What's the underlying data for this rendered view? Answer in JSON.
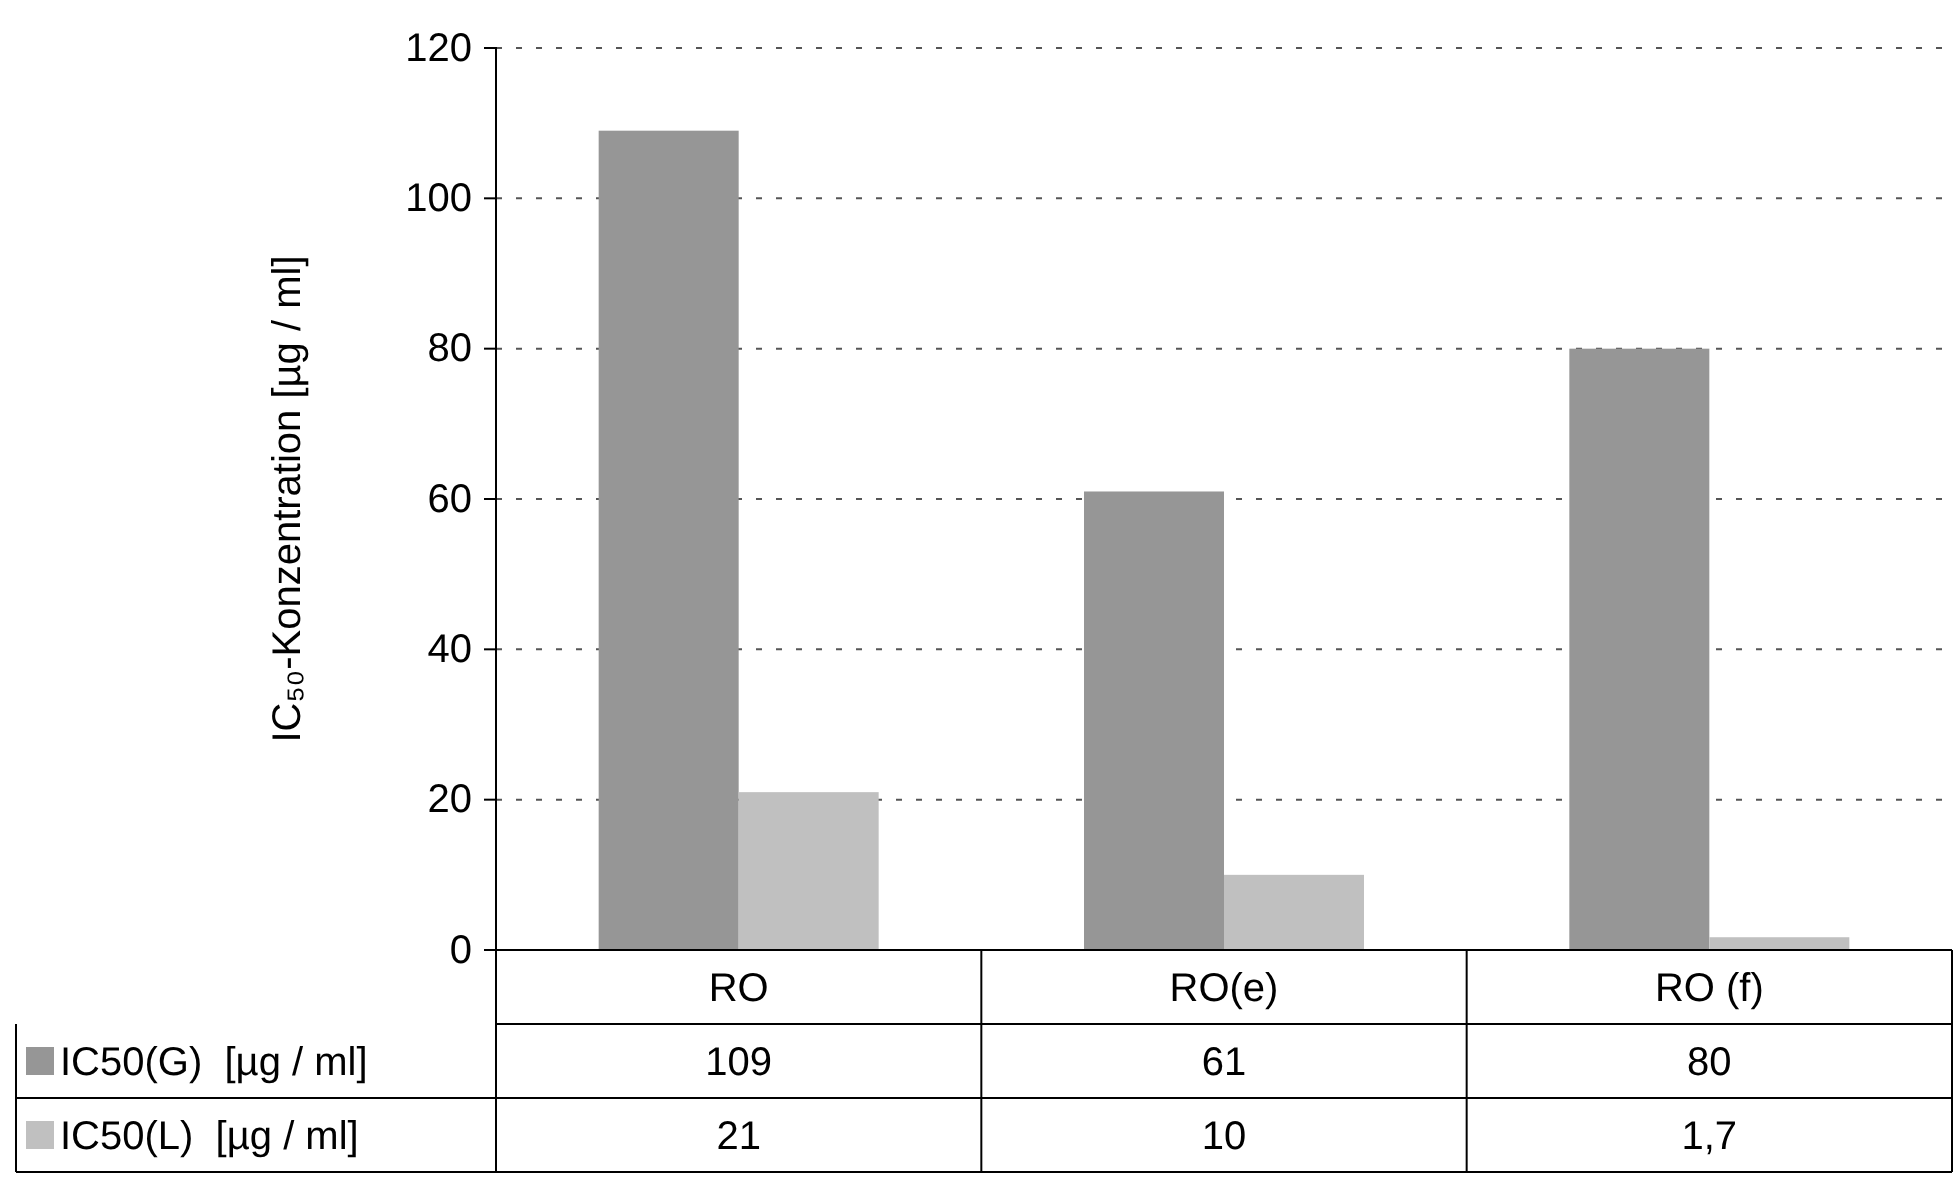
{
  "chart_data": {
    "type": "bar",
    "ylabel": "IC₅₀-Konzentration [µg / ml]",
    "categories": [
      "RO",
      "RO(e)",
      "RO (f)"
    ],
    "series": [
      {
        "name": "IC50(G)  [µg / ml]",
        "color": "#969696",
        "values": [
          109,
          61,
          80
        ],
        "value_labels": [
          "109",
          "61",
          "80"
        ]
      },
      {
        "name": "IC50(L)  [µg / ml]",
        "color": "#c0c0c0",
        "values": [
          21,
          10,
          1.7
        ],
        "value_labels": [
          "21",
          "10",
          "1,7"
        ]
      }
    ],
    "ylim": [
      0,
      120
    ],
    "yticks": [
      0,
      20,
      40,
      60,
      80,
      100,
      120
    ],
    "grid": "y",
    "legend": "bottom"
  }
}
